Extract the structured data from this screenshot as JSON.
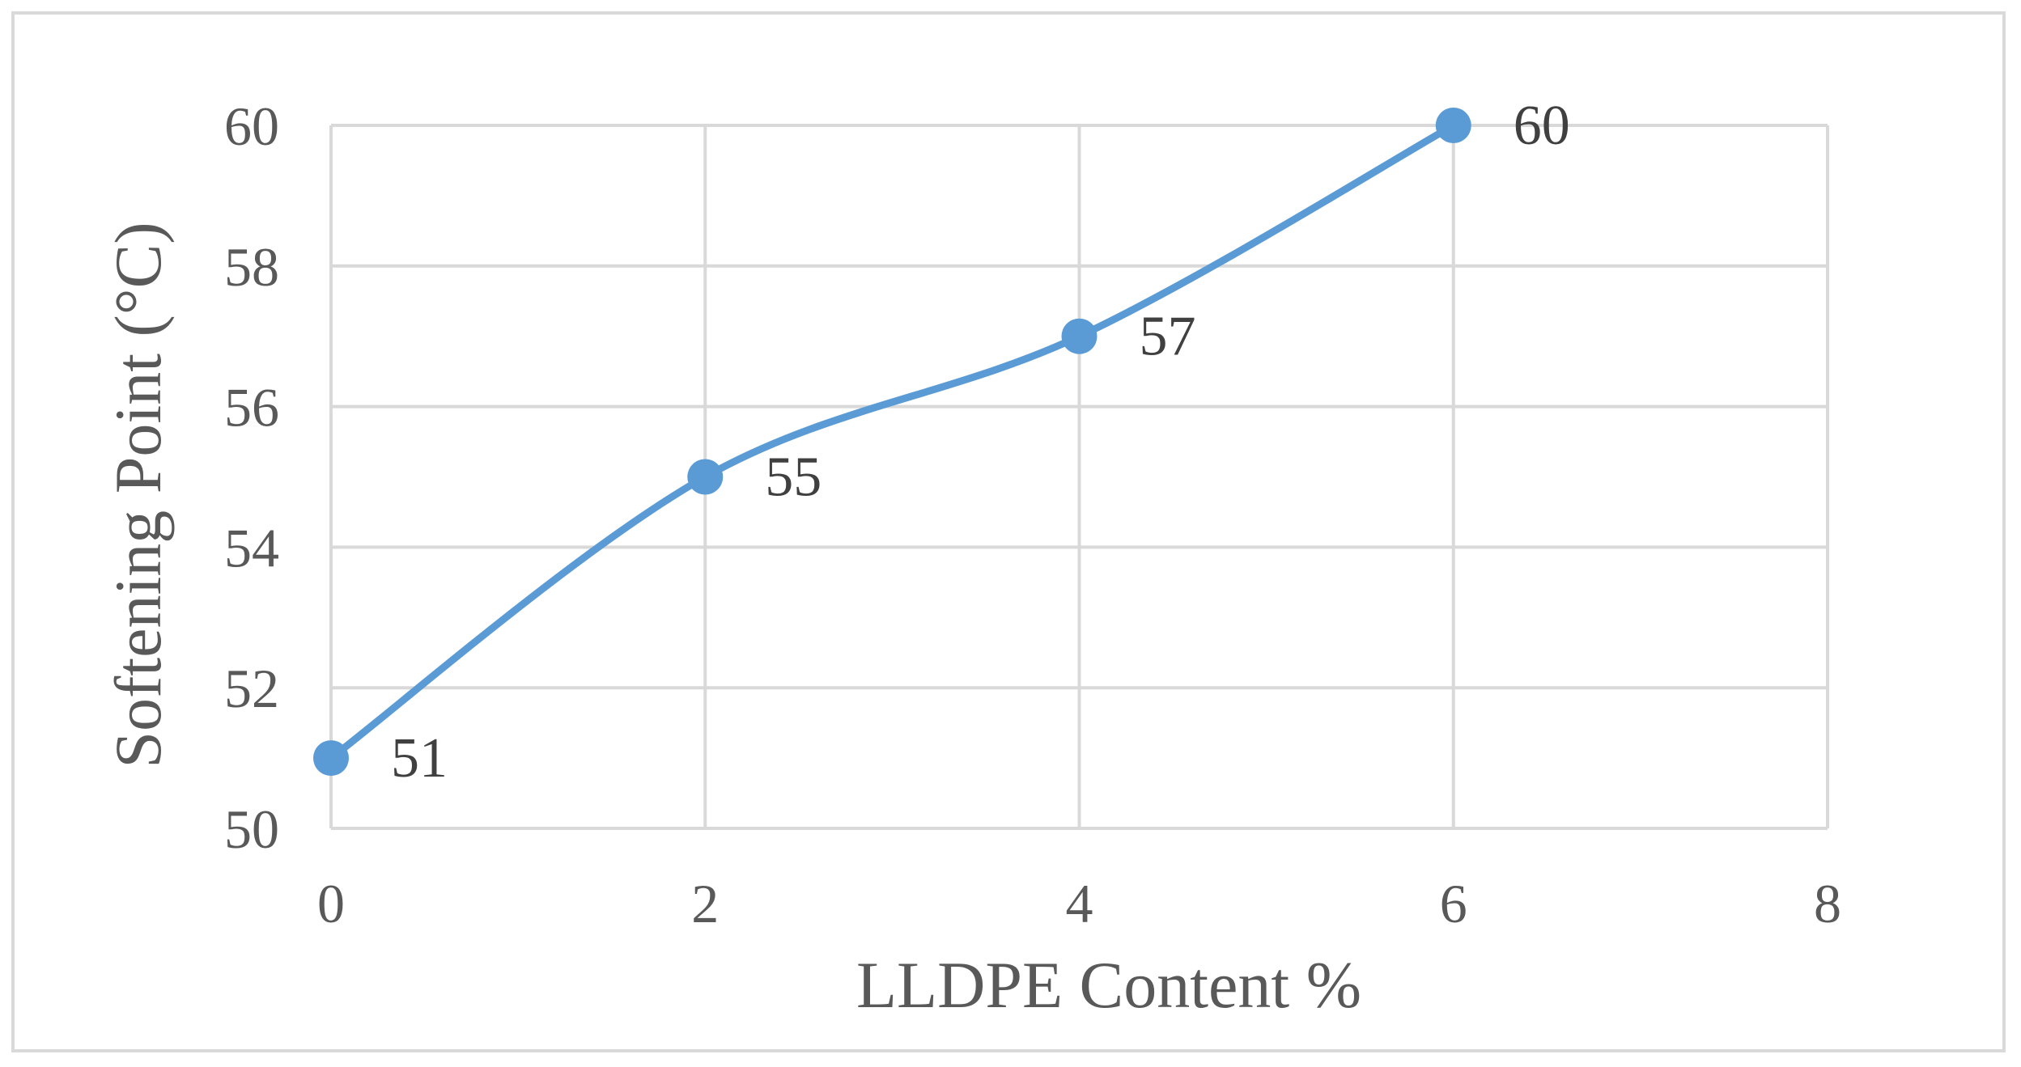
{
  "chart_data": {
    "type": "line",
    "title": "",
    "xlabel": "LLDPE Content %",
    "ylabel": "Softening Point (°C)",
    "xlim": [
      0,
      8
    ],
    "ylim": [
      50,
      60
    ],
    "x_ticks": [
      "0",
      "2",
      "4",
      "6",
      "8"
    ],
    "y_ticks": [
      "50",
      "52",
      "54",
      "56",
      "58",
      "60"
    ],
    "grid": true,
    "legend": "none",
    "smooth": true,
    "series": [
      {
        "x": [
          0,
          2,
          4,
          6
        ],
        "values": [
          51,
          55,
          57,
          60
        ],
        "data_labels": [
          "51",
          "55",
          "57",
          "60"
        ],
        "color": "#5b9bd5"
      }
    ]
  },
  "colors": {
    "grid": "#d9d9d9",
    "tick_text": "#595959",
    "label_text": "#404040",
    "line": "#5b9bd5"
  }
}
